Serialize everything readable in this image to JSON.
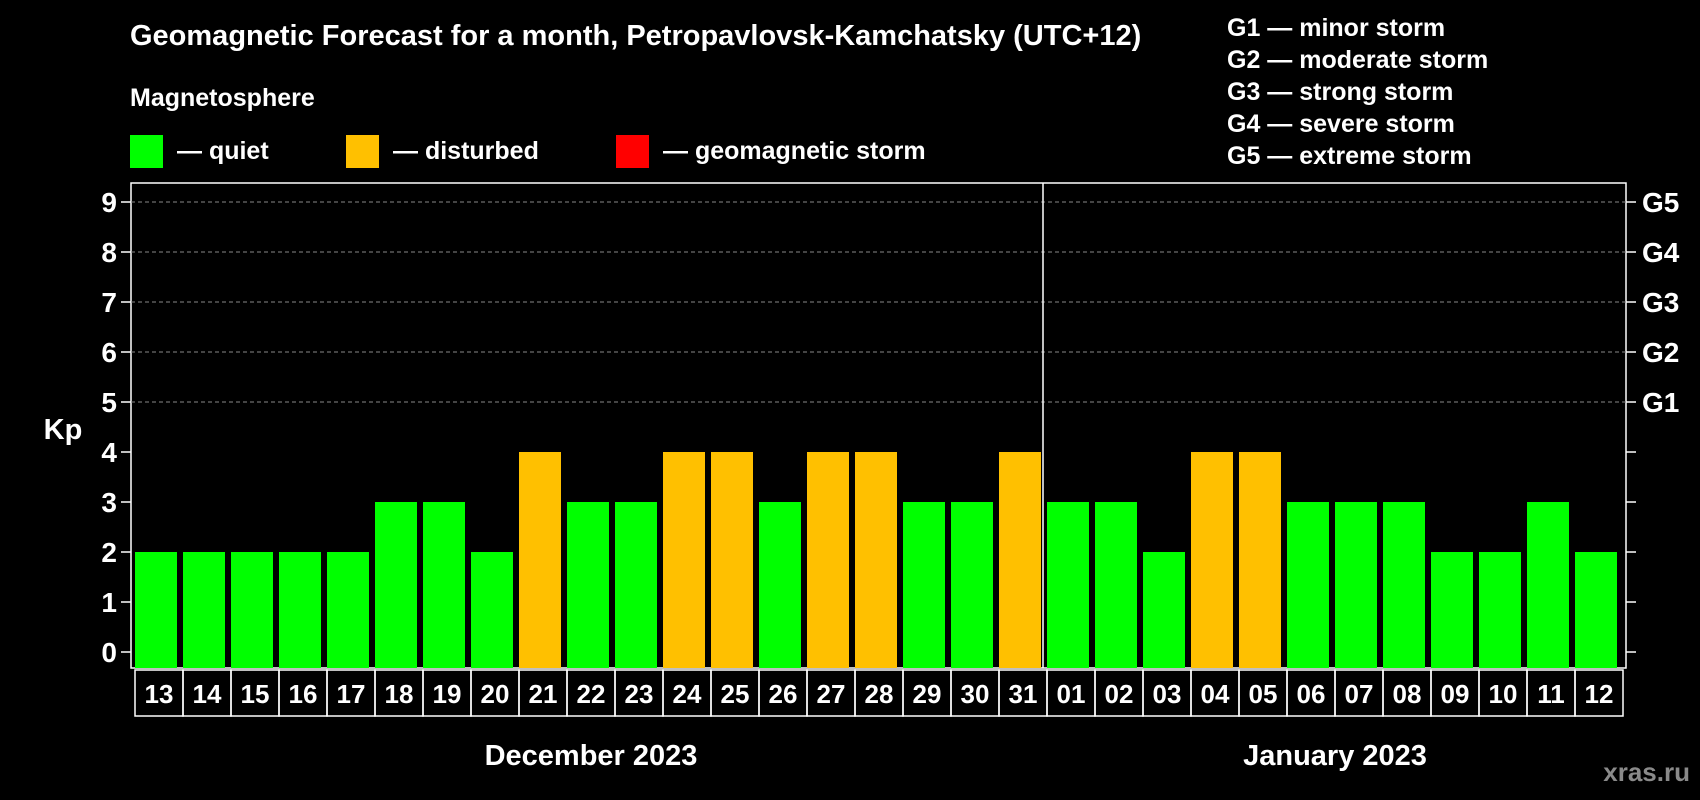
{
  "title": "Geomagnetic Forecast for a month, Petropavlovsk-Kamchatsky (UTC+12)",
  "legend": {
    "title": "Magnetosphere",
    "items": [
      {
        "key": "quiet",
        "label": "— quiet",
        "color": "#00ff00"
      },
      {
        "key": "disturbed",
        "label": "— disturbed",
        "color": "#ffc000"
      },
      {
        "key": "storm",
        "label": "— geomagnetic storm",
        "color": "#ff0000"
      }
    ]
  },
  "storm_scale": [
    "G1 — minor storm",
    "G2 — moderate storm",
    "G3 — strong storm",
    "G4 — severe storm",
    "G5 — extreme storm"
  ],
  "watermark": "xras.ru",
  "chart_data": {
    "type": "bar",
    "ylabel": "Kp",
    "ylim": [
      0,
      9
    ],
    "yticks": [
      0,
      1,
      2,
      3,
      4,
      5,
      6,
      7,
      8,
      9
    ],
    "right_axis_labels": [
      {
        "kp": 5,
        "label": "G1"
      },
      {
        "kp": 6,
        "label": "G2"
      },
      {
        "kp": 7,
        "label": "G3"
      },
      {
        "kp": 8,
        "label": "G4"
      },
      {
        "kp": 9,
        "label": "G5"
      }
    ],
    "gridlines_at": [
      5,
      6,
      7,
      8,
      9
    ],
    "months": [
      {
        "label": "December 2023",
        "start_index": 0,
        "count": 19
      },
      {
        "label": "January 2023",
        "start_index": 19,
        "count": 12
      }
    ],
    "categories": [
      "13",
      "14",
      "15",
      "16",
      "17",
      "18",
      "19",
      "20",
      "21",
      "22",
      "23",
      "24",
      "25",
      "26",
      "27",
      "28",
      "29",
      "30",
      "31",
      "01",
      "02",
      "03",
      "04",
      "05",
      "06",
      "07",
      "08",
      "09",
      "10",
      "11",
      "12"
    ],
    "values": [
      2,
      2,
      2,
      2,
      2,
      3,
      3,
      2,
      4,
      3,
      3,
      4,
      4,
      3,
      4,
      4,
      3,
      3,
      4,
      3,
      3,
      2,
      4,
      4,
      3,
      3,
      3,
      2,
      2,
      3,
      2
    ],
    "status": [
      "quiet",
      "quiet",
      "quiet",
      "quiet",
      "quiet",
      "quiet",
      "quiet",
      "quiet",
      "disturbed",
      "quiet",
      "quiet",
      "disturbed",
      "disturbed",
      "quiet",
      "disturbed",
      "disturbed",
      "quiet",
      "quiet",
      "disturbed",
      "quiet",
      "quiet",
      "quiet",
      "disturbed",
      "disturbed",
      "quiet",
      "quiet",
      "quiet",
      "quiet",
      "quiet",
      "quiet",
      "quiet"
    ]
  }
}
